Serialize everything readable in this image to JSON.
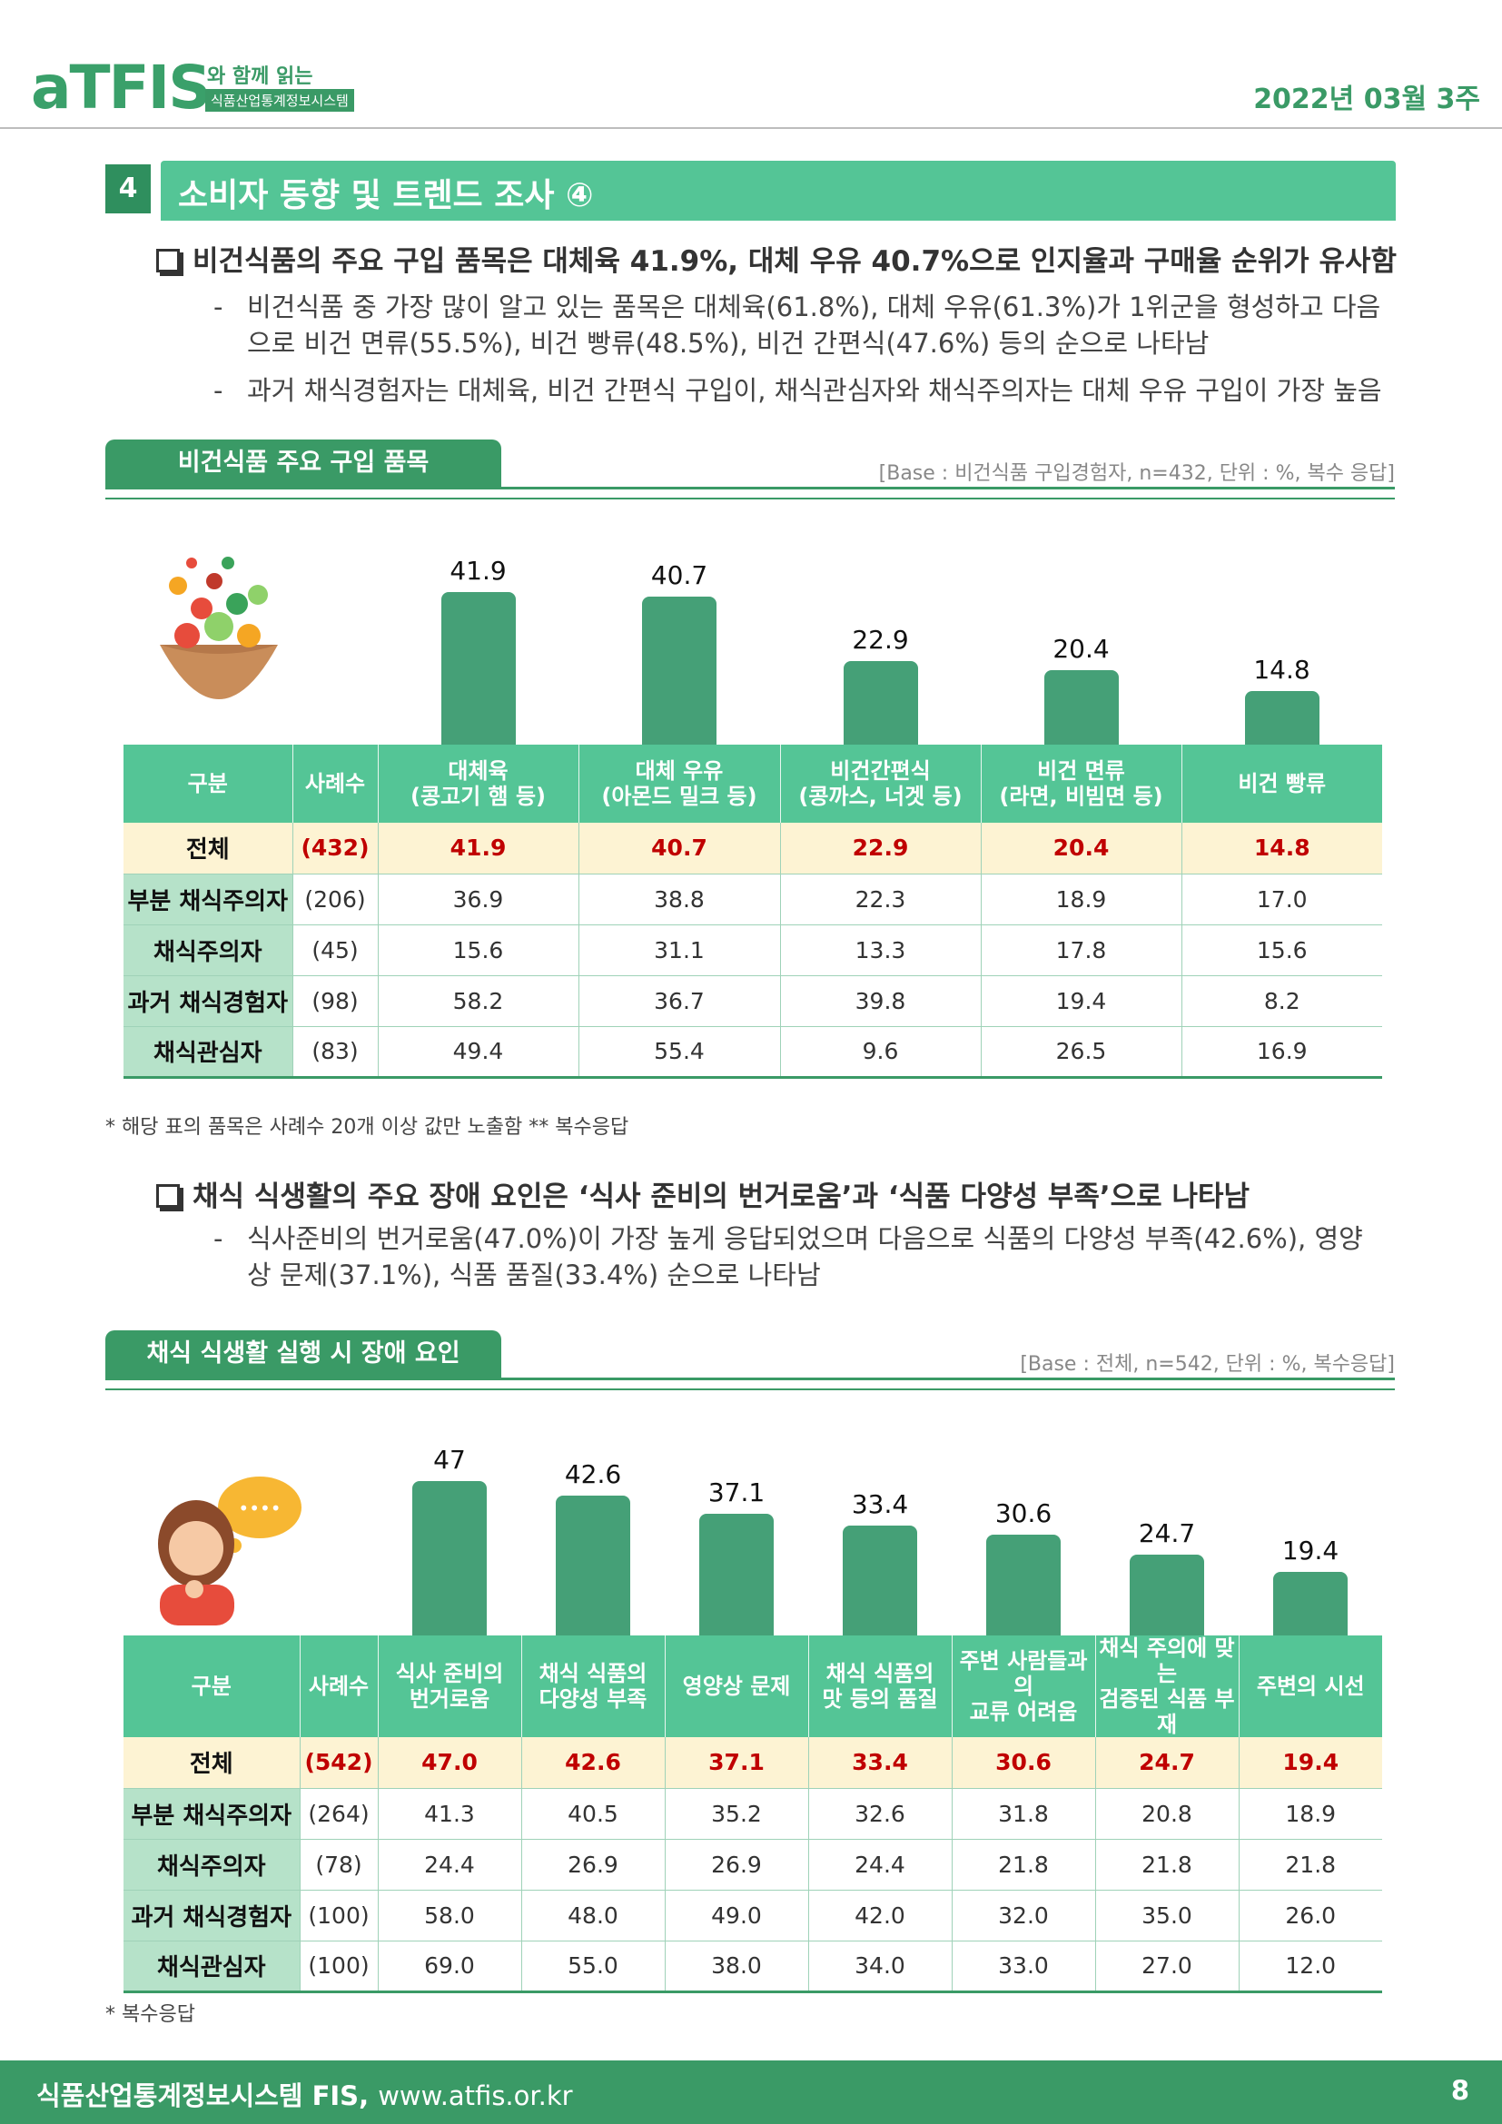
{
  "header": {
    "logo": "aTFIS",
    "logo_sub1": "와 함께 읽는",
    "logo_sub2": "식품산업통계정보시스템",
    "date": "2022년 03월 3주"
  },
  "section": {
    "number": "4",
    "title": "소비자 동향 및 트렌드 조사 ④"
  },
  "block1": {
    "headline": "비건식품의 주요 구입 품목은 대체육 41.9%,  대체 우유 40.7%으로 인지율과 구매율 순위가 유사함",
    "bullets": [
      "비건식품 중 가장 많이 알고 있는 품목은 대체육(61.8%), 대체 우유(61.3%)가 1위군을 형성하고 다음으로 비건 면류(55.5%), 비건 빵류(48.5%), 비건 간편식(47.6%) 등의 순으로 나타남",
      "과거 채식경험자는 대체육, 비건 간편식 구입이, 채식관심자와 채식주의자는 대체 우유 구입이 가장 높음"
    ]
  },
  "chart1": {
    "tab": "비건식품 주요 구입 품목",
    "base": "[Base : 비건식품 구입경험자, n=432, 단위 : %, 복수 응답]",
    "icon": "salad-bowl-icon",
    "bar_color": "#45a077",
    "table": {
      "headers": [
        "구분",
        "사례수",
        "대체육\n(콩고기 햄 등)",
        "대체 우유\n(아몬드 밀크 등)",
        "비건간편식\n(콩까스, 너겟 등)",
        "비건 면류\n(라면, 비빔면 등)",
        "비건 빵류"
      ],
      "rows": [
        {
          "label": "전체",
          "n": "(432)",
          "values": [
            "41.9",
            "40.7",
            "22.9",
            "20.4",
            "14.8"
          ]
        },
        {
          "label": "부분 채식주의자",
          "n": "(206)",
          "values": [
            "36.9",
            "38.8",
            "22.3",
            "18.9",
            "17.0"
          ]
        },
        {
          "label": "채식주의자",
          "n": "(45)",
          "values": [
            "15.6",
            "31.1",
            "13.3",
            "17.8",
            "15.6"
          ]
        },
        {
          "label": "과거 채식경험자",
          "n": "(98)",
          "values": [
            "58.2",
            "36.7",
            "39.8",
            "19.4",
            "8.2"
          ]
        },
        {
          "label": "채식관심자",
          "n": "(83)",
          "values": [
            "49.4",
            "55.4",
            "9.6",
            "26.5",
            "16.9"
          ]
        }
      ]
    },
    "footnote": "* 해당 표의 품목은 사례수 20개 이상 값만 노출함 ** 복수응답"
  },
  "block2": {
    "headline": "채식 식생활의 주요 장애 요인은 ‘식사 준비의 번거로움’과 ‘식품 다양성 부족’으로 나타남",
    "bullets": [
      "식사준비의 번거로움(47.0%)이 가장 높게 응답되었으며 다음으로 식품의 다양성 부족(42.6%), 영양상 문제(37.1%), 식품 품질(33.4%) 순으로 나타남"
    ]
  },
  "chart2": {
    "tab": "채식 식생활 실행 시 장애 요인",
    "base": "[Base : 전체, n=542, 단위 : %, 복수응답]",
    "icon": "thinking-woman-icon",
    "bubble_text": "••••",
    "bar_color": "#45a077",
    "table": {
      "headers": [
        "구분",
        "사례수",
        "식사 준비의\n번거로움",
        "채식 식품의\n다양성 부족",
        "영양상 문제",
        "채식 식품의\n맛 등의 품질",
        "주변 사람들과의\n교류 어려움",
        "채식 주의에 맞는\n검증된 식품 부재",
        "주변의 시선"
      ],
      "rows": [
        {
          "label": "전체",
          "n": "(542)",
          "values": [
            "47.0",
            "42.6",
            "37.1",
            "33.4",
            "30.6",
            "24.7",
            "19.4"
          ]
        },
        {
          "label": "부분 채식주의자",
          "n": "(264)",
          "values": [
            "41.3",
            "40.5",
            "35.2",
            "32.6",
            "31.8",
            "20.8",
            "18.9"
          ]
        },
        {
          "label": "채식주의자",
          "n": "(78)",
          "values": [
            "24.4",
            "26.9",
            "26.9",
            "24.4",
            "21.8",
            "21.8",
            "21.8"
          ]
        },
        {
          "label": "과거 채식경험자",
          "n": "(100)",
          "values": [
            "58.0",
            "48.0",
            "49.0",
            "42.0",
            "32.0",
            "35.0",
            "26.0"
          ]
        },
        {
          "label": "채식관심자",
          "n": "(100)",
          "values": [
            "69.0",
            "55.0",
            "38.0",
            "34.0",
            "33.0",
            "27.0",
            "12.0"
          ]
        }
      ]
    },
    "footnote": "* 복수응답"
  },
  "chart_data": [
    {
      "type": "bar",
      "title": "비건식품 주요 구입 품목",
      "categories": [
        "대체육 (콩고기 햄 등)",
        "대체 우유 (아몬드 밀크 등)",
        "비건간편식 (콩까스, 너겟 등)",
        "비건 면류 (라면, 비빔면 등)",
        "비건 빵류"
      ],
      "values": [
        41.9,
        40.7,
        22.9,
        20.4,
        14.8
      ],
      "ylim": [
        0,
        41.9
      ]
    },
    {
      "type": "bar",
      "title": "채식 식생활 실행 시 장애 요인",
      "categories": [
        "식사 준비의 번거로움",
        "채식 식품의 다양성 부족",
        "영양상 문제",
        "채식 식품의 맛 등의 품질",
        "주변 사람들과의 교류 어려움",
        "채식 주의에 맞는 검증된 식품 부재",
        "주변의 시선"
      ],
      "values": [
        47.0,
        42.6,
        37.1,
        33.4,
        30.6,
        24.7,
        19.4
      ],
      "ylim": [
        0,
        47.0
      ]
    }
  ],
  "footer": {
    "org": "식품산업통계정보시스템 FIS,",
    "url": "www.atfis.or.kr",
    "page": "8"
  }
}
